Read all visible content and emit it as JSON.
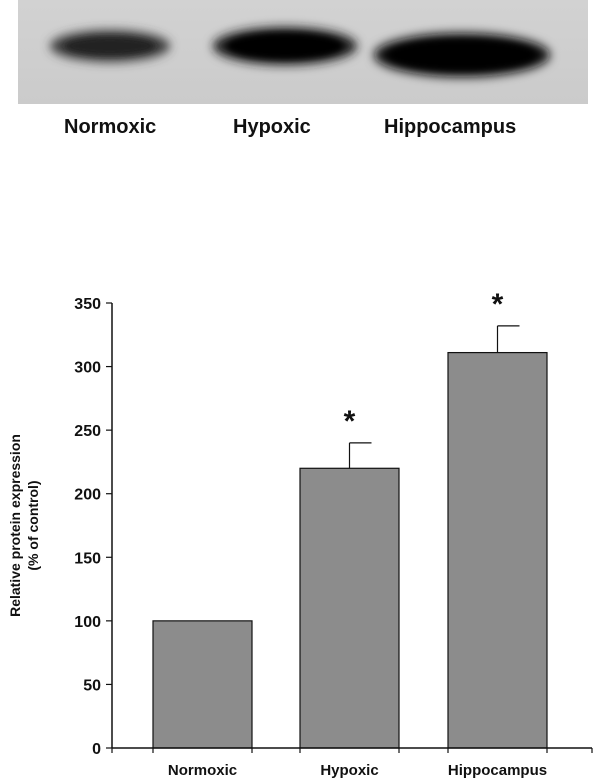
{
  "blot": {
    "lanes": [
      "Normoxic",
      "Hypoxic",
      "Hippocampus"
    ]
  },
  "chart_data": {
    "type": "bar",
    "categories": [
      "Normoxic",
      "Hypoxic",
      "Hippocampus"
    ],
    "values": [
      100,
      220,
      311
    ],
    "error": [
      0,
      20,
      21
    ],
    "significance": [
      "",
      "*",
      "*"
    ],
    "ylabel_lines": [
      "Relative protein expression",
      "(% of control)"
    ],
    "xlabel": "",
    "ylim": [
      0,
      350
    ],
    "yticks": [
      0,
      50,
      100,
      150,
      200,
      250,
      300,
      350
    ],
    "bar_color": "#8c8c8c",
    "grid": false
  }
}
